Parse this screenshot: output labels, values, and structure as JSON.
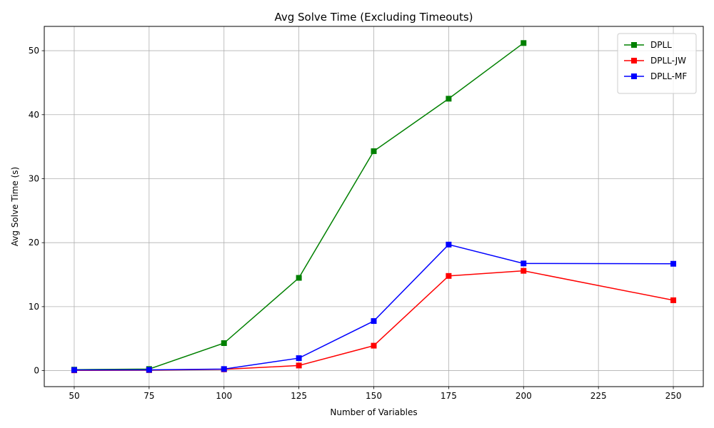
{
  "chart_data": {
    "type": "line",
    "title": "Avg Solve Time (Excluding Timeouts)",
    "xlabel": "Number of Variables",
    "ylabel": "Avg Solve Time (s)",
    "xlim": [
      40,
      260
    ],
    "ylim": [
      -2.5,
      53.8
    ],
    "xticks": [
      50,
      75,
      100,
      125,
      150,
      175,
      200,
      225,
      250
    ],
    "yticks": [
      0,
      10,
      20,
      30,
      40,
      50
    ],
    "grid": true,
    "legend_position": "top-right",
    "series": [
      {
        "name": "DPLL",
        "color": "#008000",
        "marker": "square",
        "x": [
          50,
          75,
          100,
          125,
          150,
          175,
          200
        ],
        "y": [
          0.15,
          0.25,
          4.3,
          14.5,
          34.3,
          42.5,
          51.2
        ]
      },
      {
        "name": "DPLL-JW",
        "color": "#ff0000",
        "marker": "square",
        "x": [
          50,
          75,
          100,
          125,
          150,
          175,
          200,
          250
        ],
        "y": [
          0.05,
          0.08,
          0.2,
          0.8,
          3.9,
          14.8,
          15.6,
          11.0
        ]
      },
      {
        "name": "DPLL-MF",
        "color": "#0000ff",
        "marker": "square",
        "x": [
          50,
          75,
          100,
          125,
          150,
          175,
          200,
          250
        ],
        "y": [
          0.1,
          0.12,
          0.25,
          1.95,
          7.75,
          19.7,
          16.75,
          16.7
        ]
      }
    ]
  }
}
